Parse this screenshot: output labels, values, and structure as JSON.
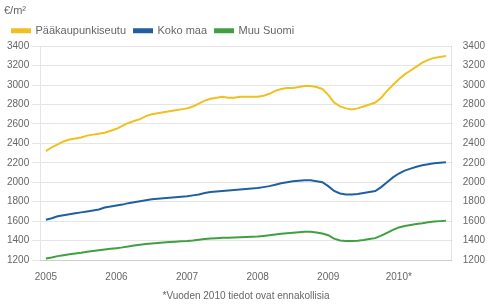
{
  "chart_data": {
    "type": "line",
    "ylabel": "€/m²",
    "footnote": "*Vuoden 2010 tiedot ovat ennakollisia",
    "x": [
      2005.0,
      2005.083,
      2005.167,
      2005.25,
      2005.333,
      2005.417,
      2005.5,
      2005.583,
      2005.667,
      2005.75,
      2005.833,
      2005.917,
      2006.0,
      2006.083,
      2006.167,
      2006.25,
      2006.333,
      2006.417,
      2006.5,
      2006.583,
      2006.667,
      2006.75,
      2006.833,
      2006.917,
      2007.0,
      2007.083,
      2007.167,
      2007.25,
      2007.333,
      2007.417,
      2007.5,
      2007.583,
      2007.667,
      2007.75,
      2007.833,
      2007.917,
      2008.0,
      2008.083,
      2008.167,
      2008.25,
      2008.333,
      2008.417,
      2008.5,
      2008.583,
      2008.667,
      2008.75,
      2008.833,
      2008.917,
      2009.0,
      2009.083,
      2009.167,
      2009.25,
      2009.333,
      2009.417,
      2009.5,
      2009.583,
      2009.667,
      2009.75,
      2009.833,
      2009.917,
      2010.0,
      2010.083,
      2010.167,
      2010.25,
      2010.333,
      2010.417,
      2010.5,
      2010.583,
      2010.667
    ],
    "series": [
      {
        "name": "Pääkaupunkiseutu",
        "color": "#f0c020",
        "values": [
          2320,
          2360,
          2390,
          2420,
          2440,
          2450,
          2460,
          2480,
          2490,
          2500,
          2510,
          2530,
          2550,
          2580,
          2610,
          2630,
          2650,
          2680,
          2700,
          2710,
          2720,
          2730,
          2740,
          2750,
          2760,
          2780,
          2810,
          2840,
          2860,
          2870,
          2880,
          2870,
          2870,
          2880,
          2880,
          2880,
          2880,
          2890,
          2910,
          2940,
          2960,
          2970,
          2970,
          2980,
          2990,
          2990,
          2980,
          2960,
          2900,
          2820,
          2780,
          2760,
          2750,
          2760,
          2780,
          2800,
          2820,
          2870,
          2940,
          3000,
          3060,
          3110,
          3150,
          3190,
          3230,
          3260,
          3280,
          3290,
          3300
        ]
      },
      {
        "name": "Koko maa",
        "color": "#2060a0",
        "values": [
          1615,
          1630,
          1650,
          1660,
          1670,
          1680,
          1690,
          1700,
          1710,
          1720,
          1740,
          1750,
          1760,
          1770,
          1785,
          1795,
          1805,
          1815,
          1825,
          1830,
          1835,
          1840,
          1845,
          1850,
          1855,
          1865,
          1875,
          1890,
          1900,
          1905,
          1910,
          1915,
          1920,
          1925,
          1930,
          1935,
          1940,
          1950,
          1960,
          1975,
          1990,
          2000,
          2010,
          2015,
          2020,
          2020,
          2010,
          2000,
          1960,
          1910,
          1885,
          1875,
          1875,
          1880,
          1890,
          1900,
          1910,
          1950,
          2000,
          2050,
          2090,
          2120,
          2140,
          2160,
          2175,
          2185,
          2195,
          2200,
          2205
        ]
      },
      {
        "name": "Muu Suomi",
        "color": "#40a040",
        "values": [
          1215,
          1225,
          1240,
          1250,
          1260,
          1268,
          1275,
          1285,
          1292,
          1300,
          1308,
          1315,
          1322,
          1330,
          1340,
          1350,
          1358,
          1365,
          1370,
          1375,
          1380,
          1385,
          1388,
          1392,
          1395,
          1400,
          1408,
          1415,
          1420,
          1425,
          1428,
          1430,
          1432,
          1435,
          1437,
          1440,
          1442,
          1448,
          1455,
          1462,
          1470,
          1475,
          1480,
          1485,
          1490,
          1490,
          1482,
          1472,
          1455,
          1420,
          1400,
          1395,
          1395,
          1398,
          1405,
          1415,
          1425,
          1450,
          1480,
          1510,
          1535,
          1550,
          1560,
          1570,
          1578,
          1588,
          1595,
          1600,
          1605
        ]
      }
    ],
    "xlim": [
      2004.92,
      2010.75
    ],
    "xticks": [
      2005,
      2006,
      2007,
      2008,
      2009,
      {
        "value": 2010,
        "label": "2010*"
      }
    ],
    "ylim": [
      1200,
      3400
    ],
    "yticks": [
      1200,
      1400,
      1600,
      1800,
      2000,
      2200,
      2400,
      2600,
      2800,
      3000,
      3200,
      3400
    ],
    "y2lim": [
      1200,
      3400
    ],
    "y2ticks": [
      1200,
      1400,
      1600,
      1800,
      2000,
      2200,
      2400,
      2600,
      2800,
      3000,
      3200,
      3400
    ],
    "grid": true,
    "legend": "upper left"
  }
}
